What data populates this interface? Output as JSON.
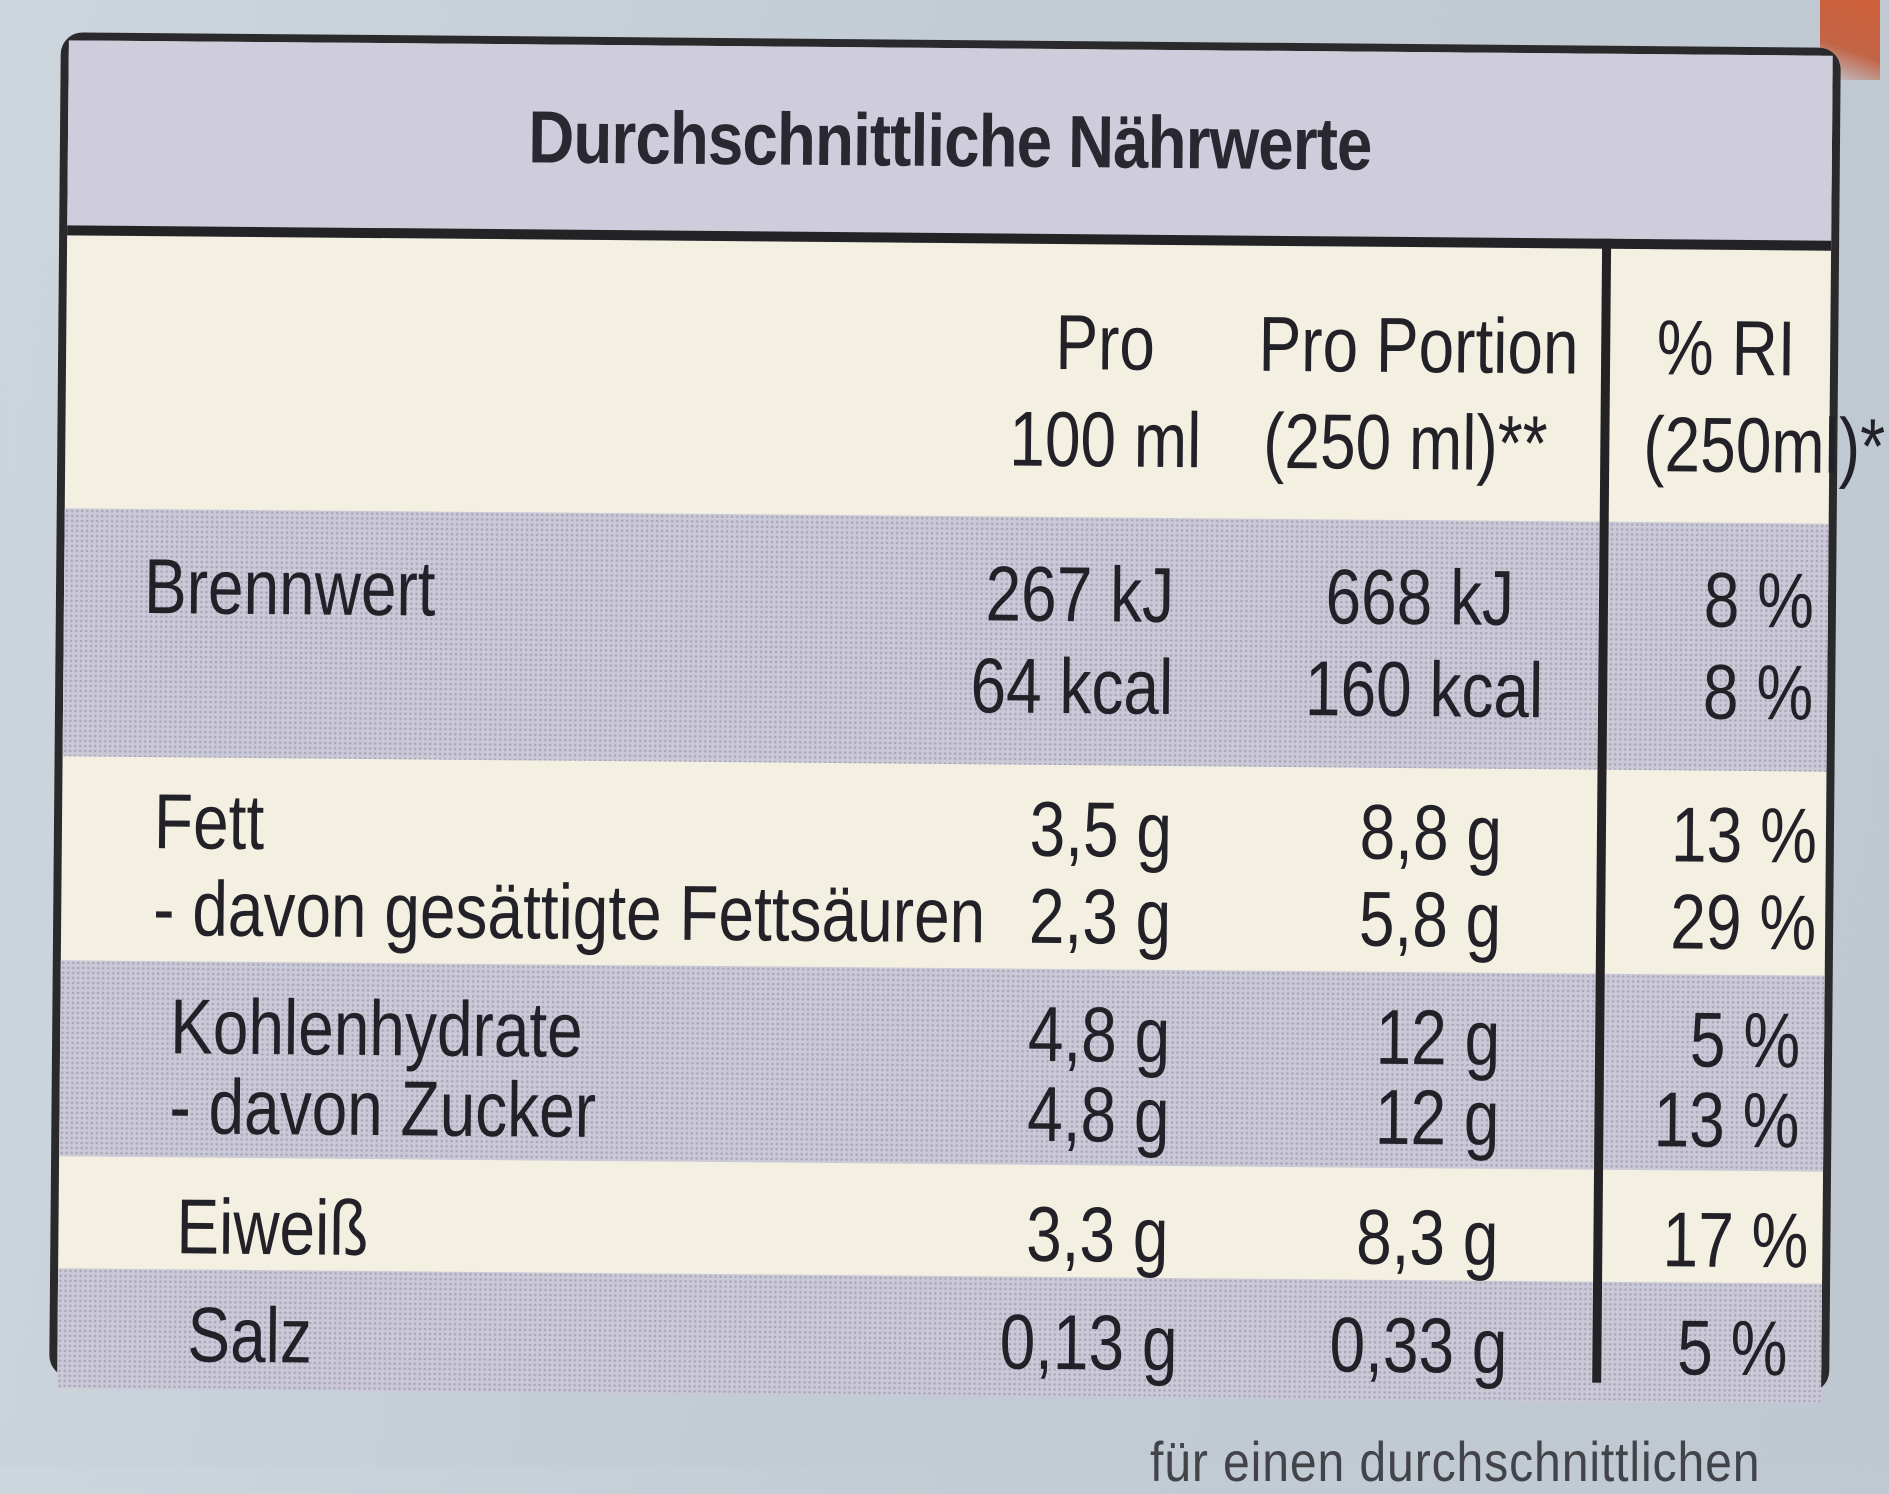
{
  "title": "Durchschnittliche Nährwerte",
  "columns": {
    "per100": {
      "line1": "Pro",
      "line2": "100 ml"
    },
    "perPortion": {
      "line1": "Pro Portion",
      "line2": "(250 ml)**"
    },
    "ri": {
      "line1": "% RI",
      "line2": "(250ml)*"
    }
  },
  "rows": {
    "energy": {
      "label": "Brennwert",
      "kj100": "267 kJ",
      "kjPortion": "668 kJ",
      "kjRi": "8 %",
      "kcal100": "64 kcal",
      "kcalPortion": "160 kcal",
      "kcalRi": "8 %"
    },
    "fat": {
      "label": "Fett",
      "per100": "3,5 g",
      "portion": "8,8 g",
      "ri": "13 %"
    },
    "saturates": {
      "label": "- davon gesättigte Fettsäuren",
      "per100": "2,3 g",
      "portion": "5,8 g",
      "ri": "29 %"
    },
    "carbs": {
      "label": "Kohlenhydrate",
      "per100": "4,8 g",
      "portion": "12 g",
      "ri": "5 %"
    },
    "sugar": {
      "label": "- davon Zucker",
      "per100": "4,8 g",
      "portion": "12 g",
      "ri": "13 %"
    },
    "protein": {
      "label": "Eiweiß",
      "per100": "3,3 g",
      "portion": "8,3 g",
      "ri": "17 %"
    },
    "salt": {
      "label": "Salz",
      "per100": "0,13 g",
      "portion": "0,33 g",
      "ri": "5 %"
    }
  },
  "footnote": "für einen durchschnittlichen",
  "colors": {
    "cream": "#f3f0e2",
    "band": "#cbc9d8",
    "border": "#232325",
    "text": "#222128",
    "background": "#c3ccd4"
  }
}
